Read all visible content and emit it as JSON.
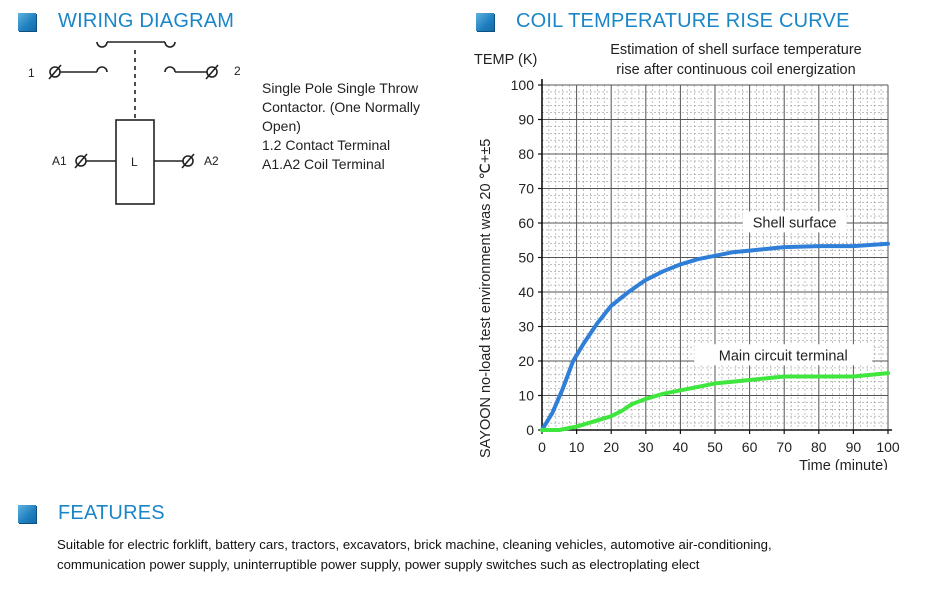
{
  "wiring": {
    "title": "WIRING DIAGRAM",
    "terminal_1": "1",
    "terminal_2": "2",
    "coil_a1": "A1",
    "coil_a2": "A2",
    "coil_label": "L",
    "description": [
      "Single Pole Single Throw",
      "Contactor. (One Normally",
      "Open)",
      "1.2 Contact Terminal",
      "A1.A2 Coil Terminal"
    ]
  },
  "coil": {
    "title": "COIL TEMPERATURE RISE CURVE"
  },
  "features": {
    "title": "FEATURES",
    "lines": [
      "Suitable for electric forklift, battery cars, tractors, excavators, brick machine, cleaning vehicles, automotive air-conditioning,",
      "communication power supply, uninterruptible power supply, power supply switches such as electroplating elect"
    ]
  },
  "colors": {
    "accent": "#1a86c8",
    "shell_surface": "#2f7fd8",
    "main_terminal": "#3ee63e"
  },
  "chart_data": {
    "type": "line",
    "title": "Estimation of shell surface temperature rise after continuous coil energization",
    "title_lines": [
      "Estimation of shell surface temperature",
      "rise after continuous coil energization"
    ],
    "ylabel": "TEMP (K)",
    "side_note": "SAYOON no-load test environment was 20 ℃+±5",
    "xlabel": "Time (minute)",
    "xlim": [
      0,
      100
    ],
    "ylim": [
      0,
      100
    ],
    "xticks": [
      0,
      10,
      20,
      30,
      40,
      50,
      60,
      70,
      80,
      90,
      100
    ],
    "yticks": [
      0,
      10,
      20,
      30,
      40,
      50,
      60,
      70,
      80,
      90,
      100
    ],
    "grid": true,
    "series": [
      {
        "name": "Shell surface",
        "color": "#2f7fd8",
        "x": [
          0,
          3,
          6,
          9,
          12,
          16,
          20,
          25,
          30,
          35,
          40,
          45,
          50,
          55,
          60,
          70,
          80,
          90,
          100
        ],
        "y": [
          0,
          5,
          12,
          20,
          25,
          31,
          36,
          40,
          43.5,
          46,
          48,
          49.5,
          50.5,
          51.5,
          52,
          53,
          53.3,
          53.3,
          54
        ]
      },
      {
        "name": "Main circuit terminal",
        "color": "#3ee63e",
        "x": [
          0,
          5,
          10,
          15,
          20,
          23,
          26,
          30,
          35,
          40,
          45,
          50,
          55,
          60,
          70,
          80,
          90,
          100
        ],
        "y": [
          0,
          0,
          1,
          2.5,
          4,
          5.5,
          7.5,
          9,
          10.5,
          11.5,
          12.5,
          13.5,
          14,
          14.5,
          15.5,
          15.5,
          15.5,
          16.5
        ]
      }
    ]
  }
}
